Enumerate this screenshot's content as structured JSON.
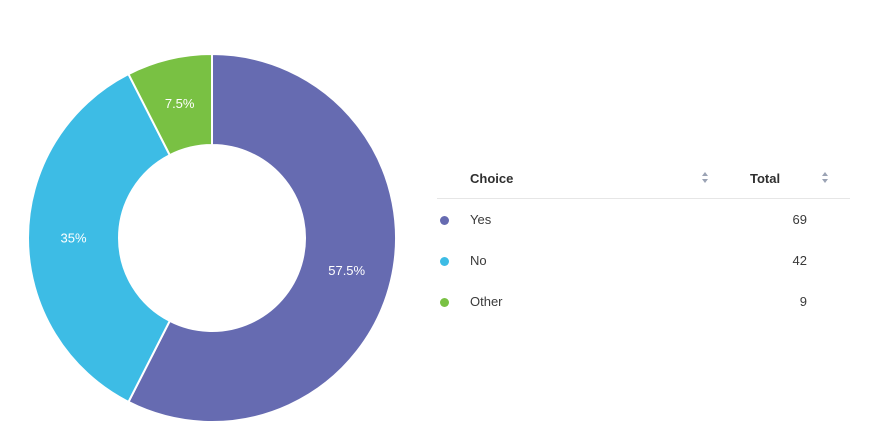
{
  "chart_data": {
    "type": "pie",
    "categories": [
      "Yes",
      "No",
      "Other"
    ],
    "values": [
      69,
      42,
      9
    ],
    "percent_labels": [
      "57.5%",
      "35%",
      "7.5%"
    ],
    "colors": [
      "#666bb1",
      "#3dbce5",
      "#79c143"
    ],
    "donut": true
  },
  "table": {
    "headers": {
      "choice": "Choice",
      "total": "Total"
    },
    "rows": [
      {
        "choice": "Yes",
        "total": "69",
        "color": "#666bb1"
      },
      {
        "choice": "No",
        "total": "42",
        "color": "#3dbce5"
      },
      {
        "choice": "Other",
        "total": "9",
        "color": "#79c143"
      }
    ]
  }
}
